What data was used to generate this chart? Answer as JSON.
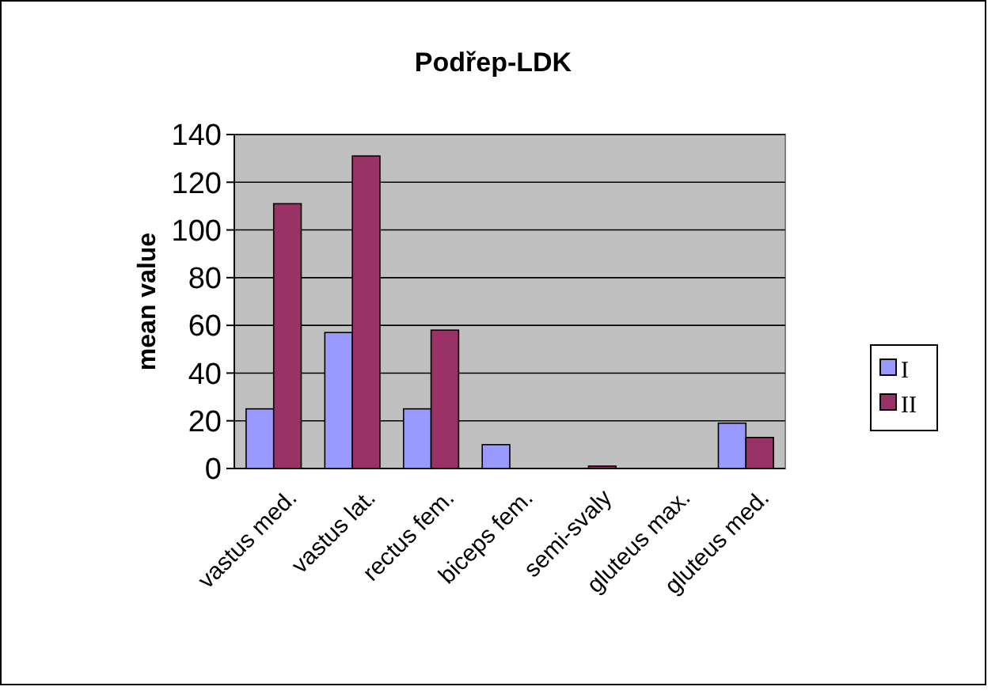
{
  "chart_data": {
    "type": "bar",
    "title": "Podřep-LDK",
    "ylabel": "mean value",
    "categories": [
      "vastus med.",
      "vastus lat.",
      "rectus fem.",
      "biceps fem.",
      "semi-svaly",
      "gluteus max.",
      "gluteus med."
    ],
    "series": [
      {
        "name": "I",
        "color": "#9999ff",
        "values": [
          25,
          57,
          25,
          10,
          0,
          0,
          19
        ]
      },
      {
        "name": "II",
        "color": "#993366",
        "values": [
          111,
          131,
          58,
          0,
          1,
          0,
          13
        ]
      }
    ],
    "ylim": [
      0,
      140
    ],
    "yticks": [
      0,
      20,
      40,
      60,
      80,
      100,
      120,
      140
    ],
    "grid": "y",
    "legend": "right"
  }
}
